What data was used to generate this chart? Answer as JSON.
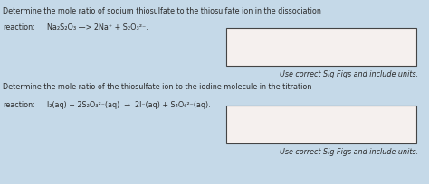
{
  "bg_color": "#c5d9e8",
  "text_color": "#2a2a2a",
  "box_edge_color": "#444444",
  "box_fill_color": "#f5f0ee",
  "block1_line1": "Determine the mole ratio of sodium thiosulfate to the thiosulfate ion in the dissociation",
  "block1_react_label": "reaction:",
  "block1_react_eq": "Na₂S₂O₃ —> 2Na⁺ + S₂O₃²⁻.",
  "block1_note": "Use correct Sig Figs and include units.",
  "block2_line1": "Determine the mole ratio of the thiosulfate ion to the iodine molecule in the titration",
  "block2_react_label": "reaction:",
  "block2_react_eq": "I₂(aq) + 2S₂O₃²⁻(aq)  →  2I⁻(aq) + S₄O₆²⁻(aq).",
  "block2_note": "Use correct Sig Figs and include units.",
  "fontsize_title": 5.8,
  "fontsize_eq": 5.8,
  "fontsize_note": 5.8
}
